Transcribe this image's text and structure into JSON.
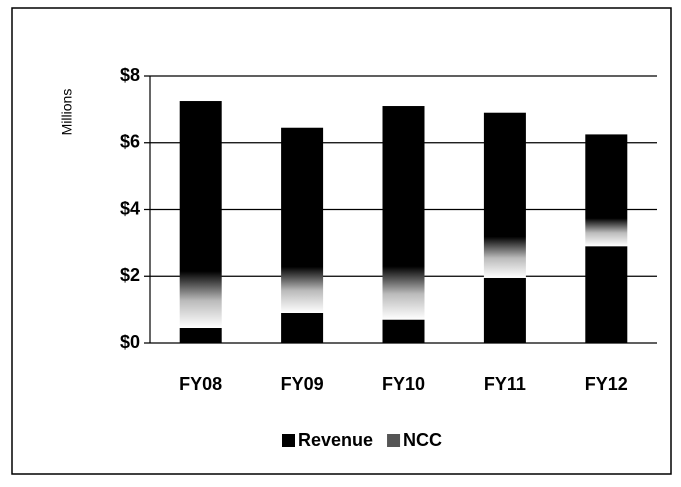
{
  "chart_data": {
    "type": "stacked_bar",
    "y_label": "Millions",
    "categories": [
      "FY08",
      "FY09",
      "FY10",
      "FY11",
      "FY12"
    ],
    "series": [
      {
        "name": "Revenue",
        "color": "#000000",
        "values": [
          0.45,
          0.9,
          0.7,
          1.95,
          2.9
        ]
      },
      {
        "name": "NCC",
        "color": "#222222",
        "values": [
          6.8,
          5.55,
          6.4,
          4.95,
          3.35
        ]
      }
    ],
    "ylim": [
      0,
      8
    ],
    "yticks": [
      {
        "value": 0,
        "label": "$0"
      },
      {
        "value": 2,
        "label": "$2"
      },
      {
        "value": 4,
        "label": "$4"
      },
      {
        "value": 6,
        "label": "$6"
      },
      {
        "value": 8,
        "label": "$8"
      }
    ],
    "grid": true,
    "legend": "bottom"
  }
}
